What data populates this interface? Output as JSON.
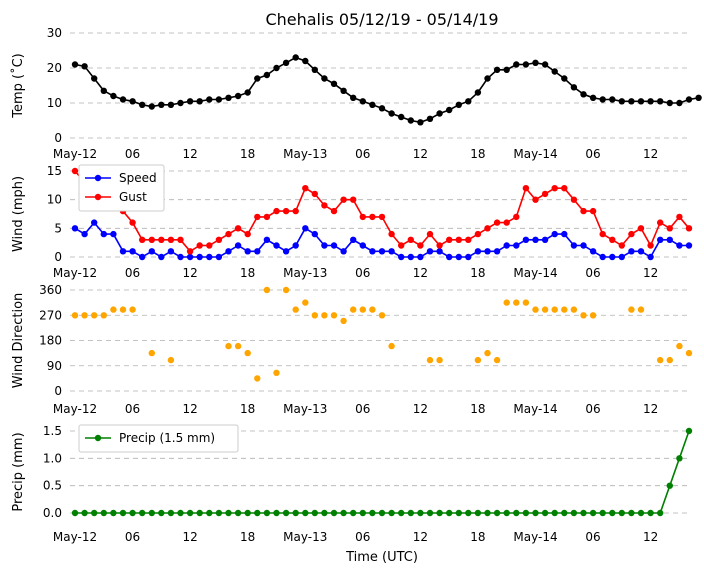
{
  "title": "Chehalis 05/12/19 - 05/14/19",
  "xlabel": "Time (UTC)",
  "x_ticks": [
    {
      "hour": 0,
      "label": "May-12"
    },
    {
      "hour": 6,
      "label": "06"
    },
    {
      "hour": 12,
      "label": "12"
    },
    {
      "hour": 18,
      "label": "18"
    },
    {
      "hour": 24,
      "label": "May-13"
    },
    {
      "hour": 30,
      "label": "06"
    },
    {
      "hour": 36,
      "label": "12"
    },
    {
      "hour": 42,
      "label": "18"
    },
    {
      "hour": 48,
      "label": "May-14"
    },
    {
      "hour": 54,
      "label": "06"
    },
    {
      "hour": 60,
      "label": "12"
    }
  ],
  "chart_data": [
    {
      "type": "line",
      "ylabel": "Temp ($^\\circ$C)",
      "ylabel_display": "Temp (˚C)",
      "ylim": [
        0,
        30
      ],
      "yticks": [
        0,
        10,
        20,
        30
      ],
      "grid": true,
      "legend": "none",
      "x_start_hour": 0,
      "x_step_hours": 1,
      "series": [
        {
          "name": "",
          "color": "#000000",
          "values": [
            21,
            20.5,
            17,
            13.5,
            12,
            11,
            10.5,
            9.5,
            9,
            9.5,
            9.5,
            10,
            10.5,
            10.5,
            11,
            11,
            11.5,
            12,
            13,
            17,
            18,
            20,
            21.5,
            23,
            22,
            19.5,
            17,
            15.5,
            13.5,
            11.5,
            10.5,
            9.5,
            8.5,
            7,
            6,
            5,
            4.5,
            5.5,
            7,
            8,
            9.5,
            10.5,
            13,
            17,
            19.5,
            19.5,
            21,
            21,
            21.5,
            21,
            19,
            17,
            14.5,
            12.5,
            11.5,
            11,
            11,
            10.5,
            10.5,
            10.5,
            10.5,
            10.5,
            10,
            10,
            11,
            11.5
          ]
        }
      ]
    },
    {
      "type": "line",
      "ylabel": "Wind (mph)",
      "ylim": [
        0,
        15
      ],
      "yticks": [
        0,
        5,
        10,
        15
      ],
      "grid": true,
      "legend": "top-left",
      "x_start_hour": 0,
      "x_step_hours": 1,
      "series": [
        {
          "name": "Speed",
          "color": "#0000ff",
          "values": [
            5,
            4,
            6,
            4,
            4,
            1,
            1,
            0,
            1,
            0,
            1,
            0,
            0,
            0,
            0,
            0,
            1,
            2,
            1,
            1,
            3,
            2,
            1,
            2,
            5,
            4,
            2,
            2,
            1,
            3,
            2,
            1,
            1,
            1,
            0,
            0,
            0,
            1,
            1,
            0,
            0,
            0,
            1,
            1,
            1,
            2,
            2,
            3,
            3,
            3,
            4,
            4,
            2,
            2,
            1,
            0,
            0,
            0,
            1,
            1,
            0,
            3,
            3,
            2,
            2
          ]
        },
        {
          "name": "Gust",
          "color": "#ff0000",
          "values": [
            15,
            13,
            13,
            15,
            13,
            8,
            6,
            3,
            3,
            3,
            3,
            3,
            1,
            2,
            2,
            3,
            4,
            5,
            4,
            7,
            7,
            8,
            8,
            8,
            12,
            11,
            9,
            8,
            10,
            10,
            7,
            7,
            7,
            4,
            2,
            3,
            2,
            4,
            2,
            3,
            3,
            3,
            4,
            5,
            6,
            6,
            7,
            12,
            10,
            11,
            12,
            12,
            10,
            8,
            8,
            4,
            3,
            2,
            4,
            5,
            2,
            6,
            5,
            7,
            5
          ]
        }
      ]
    },
    {
      "type": "scatter",
      "ylabel": "Wind Direction",
      "ylim": [
        0,
        360
      ],
      "yticks": [
        0,
        90,
        180,
        270,
        360
      ],
      "grid": true,
      "legend": "none",
      "series": [
        {
          "name": "",
          "color": "#ffa500",
          "points": [
            [
              0,
              270
            ],
            [
              1,
              270
            ],
            [
              2,
              270
            ],
            [
              3,
              270
            ],
            [
              4,
              290
            ],
            [
              5,
              290
            ],
            [
              6,
              290
            ],
            [
              8,
              135
            ],
            [
              10,
              110
            ],
            [
              16,
              160
            ],
            [
              17,
              160
            ],
            [
              18,
              135
            ],
            [
              19,
              45
            ],
            [
              20,
              360
            ],
            [
              21,
              65
            ],
            [
              22,
              360
            ],
            [
              23,
              290
            ],
            [
              24,
              315
            ],
            [
              25,
              270
            ],
            [
              26,
              270
            ],
            [
              27,
              270
            ],
            [
              28,
              250
            ],
            [
              29,
              290
            ],
            [
              30,
              290
            ],
            [
              31,
              290
            ],
            [
              32,
              270
            ],
            [
              33,
              160
            ],
            [
              37,
              110
            ],
            [
              38,
              110
            ],
            [
              42,
              110
            ],
            [
              43,
              135
            ],
            [
              44,
              110
            ],
            [
              45,
              315
            ],
            [
              46,
              315
            ],
            [
              47,
              315
            ],
            [
              48,
              290
            ],
            [
              49,
              290
            ],
            [
              50,
              290
            ],
            [
              51,
              290
            ],
            [
              52,
              290
            ],
            [
              53,
              270
            ],
            [
              54,
              270
            ],
            [
              58,
              290
            ],
            [
              59,
              290
            ],
            [
              61,
              110
            ],
            [
              62,
              110
            ],
            [
              63,
              160
            ],
            [
              64,
              135
            ]
          ]
        }
      ]
    },
    {
      "type": "line",
      "ylabel": "Precip (mm)",
      "ylim": [
        0,
        1.5
      ],
      "yticks": [
        0.0,
        0.5,
        1.0,
        1.5
      ],
      "ytick_labels": [
        "0.0",
        "0.5",
        "1.0",
        "1.5"
      ],
      "grid": true,
      "legend": "top-left",
      "x_start_hour": 0,
      "x_step_hours": 1,
      "series": [
        {
          "name": "Precip (1.5 mm)",
          "color": "#008000",
          "values": [
            0,
            0,
            0,
            0,
            0,
            0,
            0,
            0,
            0,
            0,
            0,
            0,
            0,
            0,
            0,
            0,
            0,
            0,
            0,
            0,
            0,
            0,
            0,
            0,
            0,
            0,
            0,
            0,
            0,
            0,
            0,
            0,
            0,
            0,
            0,
            0,
            0,
            0,
            0,
            0,
            0,
            0,
            0,
            0,
            0,
            0,
            0,
            0,
            0,
            0,
            0,
            0,
            0,
            0,
            0,
            0,
            0,
            0,
            0,
            0,
            0,
            0,
            0.5,
            1.0,
            1.5
          ]
        }
      ]
    }
  ]
}
